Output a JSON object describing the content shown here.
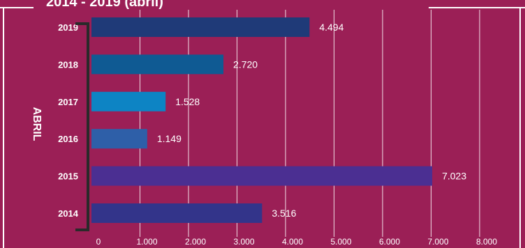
{
  "chart_data": {
    "type": "bar",
    "orientation": "horizontal",
    "title": "2014 - 2019 (abril)",
    "group_label": "ABRIL",
    "categories": [
      "2019",
      "2018",
      "2017",
      "2016",
      "2015",
      "2014"
    ],
    "values": [
      4494,
      2720,
      1528,
      1149,
      7023,
      3516
    ],
    "value_labels": [
      "4.494",
      "2.720",
      "1.528",
      "1.149",
      "7.023",
      "3.516"
    ],
    "xlim": [
      0,
      8000
    ],
    "x_ticks": [
      0,
      1000,
      2000,
      3000,
      4000,
      5000,
      6000,
      7000,
      8000
    ],
    "x_tick_labels": [
      "0",
      "1.000",
      "2.000",
      "3.000",
      "4.000",
      "5.000",
      "6.000",
      "7.000",
      "8.000"
    ],
    "grid": true,
    "bar_colors": [
      "#1f3a78",
      "#0f5a93",
      "#0d84c4",
      "#2e5fa8",
      "#4b2f92",
      "#33348a"
    ],
    "background_color": "#9b1f56"
  }
}
